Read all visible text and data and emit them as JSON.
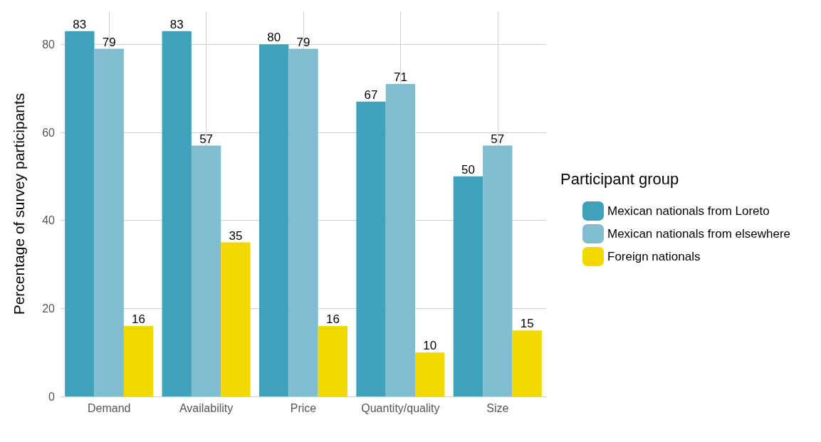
{
  "chart_data": {
    "type": "bar",
    "ylabel": "Percentage of survey participants",
    "legend_title": "Participant group",
    "categories": [
      "Demand",
      "Availability",
      "Price",
      "Quantity/quality",
      "Size"
    ],
    "series": [
      {
        "name": "Mexican nationals from Loreto",
        "color": "#40a1bb",
        "values": [
          83,
          83,
          80,
          67,
          50
        ]
      },
      {
        "name": "Mexican nationals from elsewhere",
        "color": "#80bdd0",
        "values": [
          79,
          57,
          79,
          71,
          57
        ]
      },
      {
        "name": "Foreign nationals",
        "color": "#f0d800",
        "values": [
          16,
          35,
          16,
          10,
          15
        ]
      }
    ],
    "ylim": [
      0,
      87.5
    ],
    "yticks": [
      0,
      20,
      40,
      60,
      80
    ],
    "grid": true,
    "legend": "right",
    "data_labels": true
  }
}
